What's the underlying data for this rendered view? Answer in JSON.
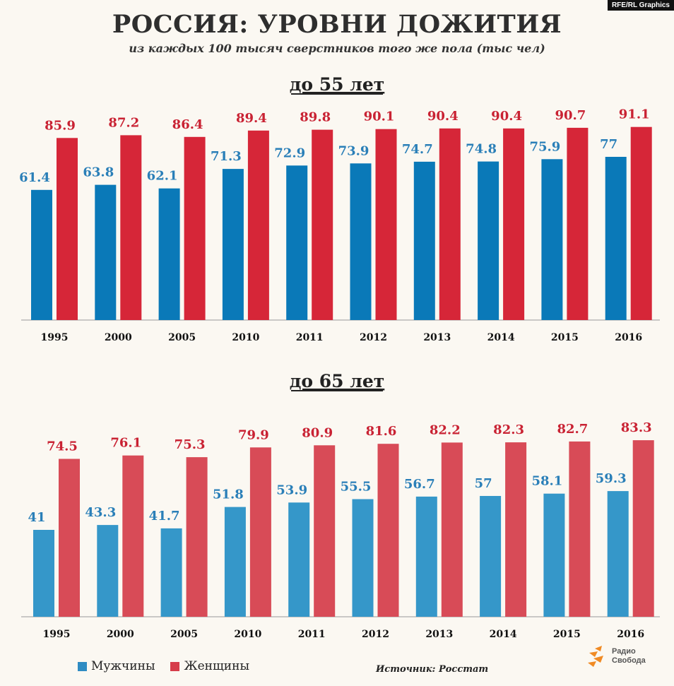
{
  "credit": "RFE/RL Graphics",
  "title": "РОССИЯ: УРОВНИ ДОЖИТИЯ",
  "subtitle": "из каждых 100 тысяч сверстников того же пола (тыс чел)",
  "legend": {
    "men": "Мужчины",
    "women": "Женщины"
  },
  "source": "Источник: Росстат",
  "logo": {
    "line1": "Радио",
    "line2": "Свобода",
    "icon": "radio-svoboda-logo-icon"
  },
  "colors": {
    "men_55": "#0a79b8",
    "women_55": "#d62638",
    "men_65": "#3597c9",
    "women_65": "#d84b57",
    "label_men": "#2a7fb8",
    "label_women": "#c92233"
  },
  "chart_data": [
    {
      "type": "bar",
      "title": "до 55 лет",
      "categories": [
        "1995",
        "2000",
        "2005",
        "2010",
        "2011",
        "2012",
        "2013",
        "2014",
        "2015",
        "2016"
      ],
      "series": [
        {
          "name": "Мужчины",
          "values": [
            61.4,
            63.8,
            62.1,
            71.3,
            72.9,
            73.9,
            74.7,
            74.8,
            75.9,
            77
          ]
        },
        {
          "name": "Женщины",
          "values": [
            85.9,
            87.2,
            86.4,
            89.4,
            89.8,
            90.1,
            90.4,
            90.4,
            90.7,
            91.1
          ]
        }
      ]
    },
    {
      "type": "bar",
      "title": "до 65 лет",
      "categories": [
        "1995",
        "2000",
        "2005",
        "2010",
        "2011",
        "2012",
        "2013",
        "2014",
        "2015",
        "2016"
      ],
      "series": [
        {
          "name": "Мужчины",
          "values": [
            41,
            43.3,
            41.7,
            51.8,
            53.9,
            55.5,
            56.7,
            57,
            58.1,
            59.3
          ]
        },
        {
          "name": "Женщины",
          "values": [
            74.5,
            76.1,
            75.3,
            79.9,
            80.9,
            81.6,
            82.2,
            82.3,
            82.7,
            83.3
          ]
        }
      ]
    }
  ]
}
